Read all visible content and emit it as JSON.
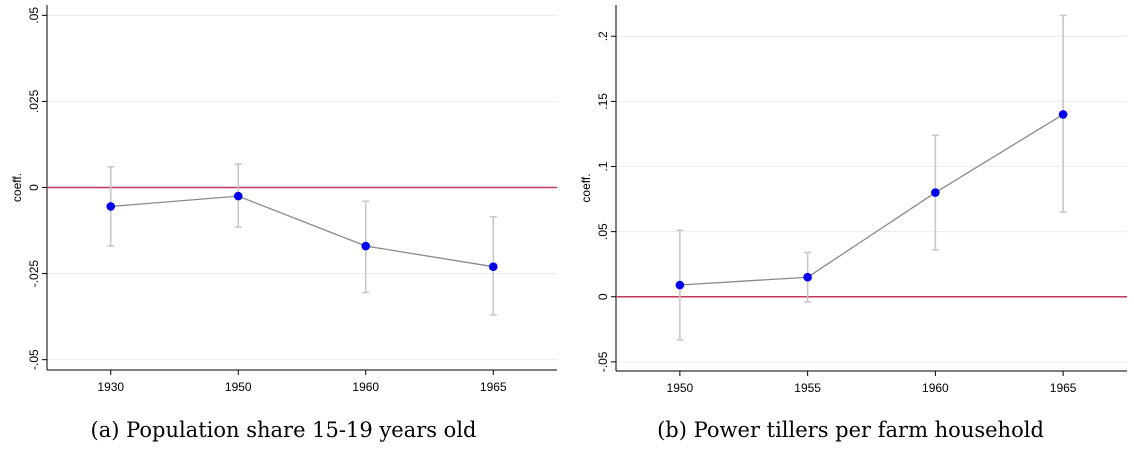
{
  "chart_data": [
    {
      "type": "line",
      "caption": "(a) Population share 15-19 years old",
      "ylabel": "coeff.",
      "xlabel": "",
      "categories": [
        "1930",
        "1950",
        "1960",
        "1965"
      ],
      "series": [
        {
          "values": [
            -0.0055,
            -0.0025,
            -0.017,
            -0.023
          ],
          "ci_low": [
            -0.017,
            -0.0115,
            -0.0305,
            -0.037
          ],
          "ci_high": [
            0.006,
            0.0068,
            -0.004,
            -0.0085
          ]
        }
      ],
      "ylim": [
        -0.053,
        0.053
      ],
      "yticks": [
        -0.05,
        -0.025,
        0,
        0.025,
        0.05
      ],
      "ytick_labels": [
        "-.05",
        "-.025",
        "0",
        ".025",
        ".05"
      ],
      "reference_line": 0,
      "grid": true,
      "colors": {
        "point": "#0000ee",
        "line": "#8a8a8a",
        "ci": "#c8c8c8",
        "ref": "#c0395a",
        "grid": "#ececec"
      }
    },
    {
      "type": "line",
      "caption": "(b) Power tillers per farm household",
      "ylabel": "coeff.",
      "xlabel": "",
      "categories": [
        "1950",
        "1955",
        "1960",
        "1965"
      ],
      "series": [
        {
          "values": [
            0.009,
            0.015,
            0.08,
            0.14
          ],
          "ci_low": [
            -0.033,
            -0.004,
            0.036,
            0.065
          ],
          "ci_high": [
            0.051,
            0.034,
            0.124,
            0.216
          ]
        }
      ],
      "ylim": [
        -0.057,
        0.224
      ],
      "yticks": [
        -0.05,
        0,
        0.05,
        0.1,
        0.15,
        0.2
      ],
      "ytick_labels": [
        "-.05",
        "0",
        ".05",
        ".1",
        ".15",
        ".2"
      ],
      "reference_line": 0,
      "grid": true,
      "colors": {
        "point": "#0000ee",
        "line": "#8a8a8a",
        "ci": "#c8c8c8",
        "ref": "#c0395a",
        "grid": "#ececec"
      }
    }
  ]
}
